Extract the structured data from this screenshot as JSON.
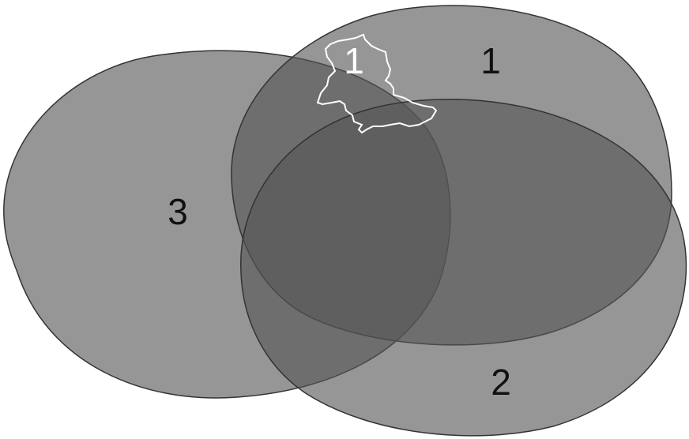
{
  "diagram": {
    "fill_color": "#555555",
    "fill_opacity": 0.62,
    "stroke_color": "#333333",
    "outline_color": "#ffffff",
    "sets": [
      {
        "id": "set-1",
        "label": "1"
      },
      {
        "id": "set-2",
        "label": "2"
      },
      {
        "id": "set-3",
        "label": "3"
      }
    ],
    "outline_shape": {
      "label": "1"
    }
  }
}
